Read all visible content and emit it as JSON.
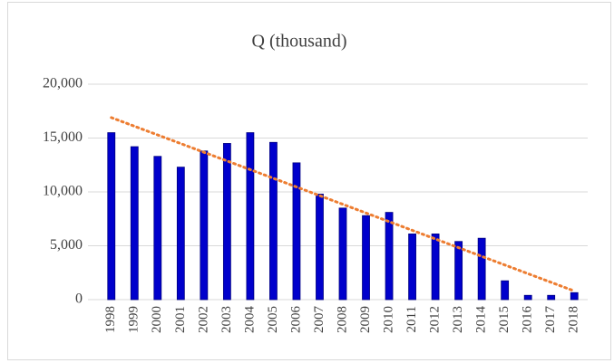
{
  "chart_data": {
    "type": "bar",
    "title": "Q (thousand)",
    "categories": [
      "1998",
      "1999",
      "2000",
      "2001",
      "2002",
      "2003",
      "2004",
      "2005",
      "2006",
      "2007",
      "2008",
      "2009",
      "2010",
      "2011",
      "2012",
      "2013",
      "2014",
      "2015",
      "2016",
      "2017",
      "2018"
    ],
    "values": [
      15500,
      14200,
      13300,
      12300,
      13800,
      14500,
      15500,
      14600,
      12700,
      9800,
      8500,
      7800,
      8100,
      6100,
      6100,
      5400,
      5700,
      1750,
      400,
      400,
      650
    ],
    "color": "#0000cc",
    "trendline": {
      "color": "#ed7d31",
      "start": 16900,
      "end": 800
    },
    "ylim": [
      0,
      20000
    ],
    "yticks": [
      0,
      {
        "value": 5000,
        "label": "5,000"
      },
      {
        "value": 10000,
        "label": "10,000"
      },
      {
        "value": 15000,
        "label": "15,000"
      },
      {
        "value": 20000,
        "label": "20,000"
      }
    ],
    "grid": true
  }
}
